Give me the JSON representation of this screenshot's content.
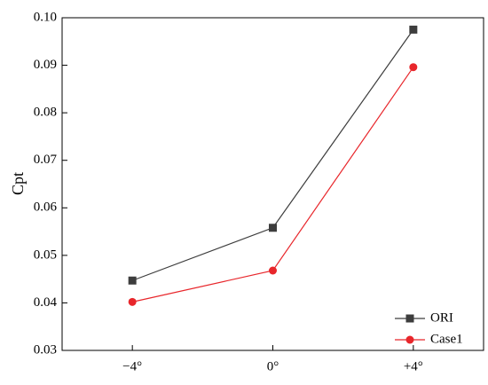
{
  "chart_data": {
    "type": "line",
    "y_label": "Cpt",
    "categories": [
      "−4°",
      "0°",
      "+4°"
    ],
    "series": [
      {
        "name": "ORI",
        "color": "#3d3d3d",
        "marker": "square",
        "values": [
          0.0447,
          0.0558,
          0.0975
        ]
      },
      {
        "name": "Case1",
        "color": "#e8262b",
        "marker": "circle",
        "values": [
          0.0402,
          0.0468,
          0.0896
        ]
      }
    ],
    "ylim": [
      0.03,
      0.1
    ],
    "yticks": [
      "0.03",
      "0.04",
      "0.05",
      "0.06",
      "0.07",
      "0.08",
      "0.09",
      {
        "value": 0.1,
        "label": "0.10"
      }
    ],
    "legend": "lower right"
  }
}
